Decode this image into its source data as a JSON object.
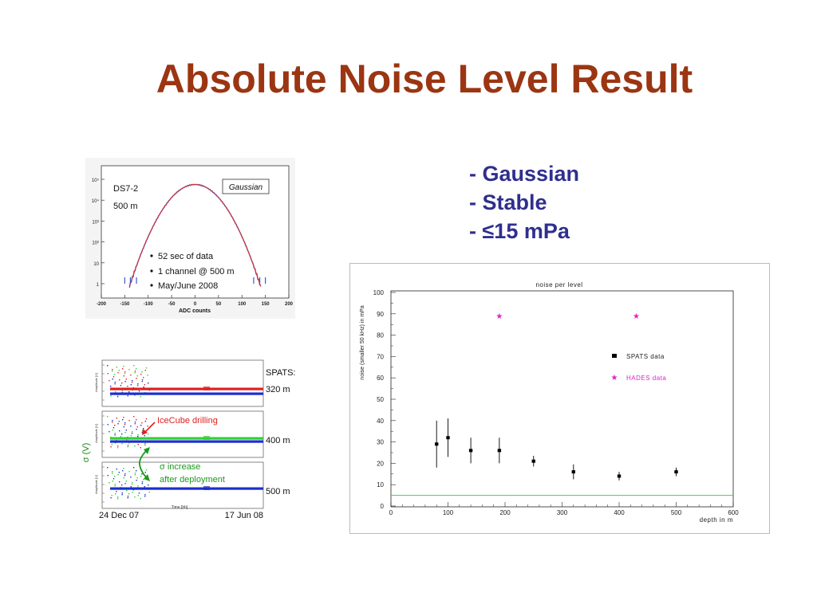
{
  "slide": {
    "title": "Absolute Noise Level Result",
    "bullets": [
      "- Gaussian",
      "- Stable",
      "- ≤15 mPa"
    ]
  },
  "chart_data": [
    {
      "type": "line",
      "y_scale": "log",
      "xlim": [
        -200,
        200
      ],
      "xticks": [
        "-200",
        "-150",
        "-100",
        "-50",
        "0",
        "50",
        "100",
        "150",
        "200"
      ],
      "yticks": [
        "1",
        "10",
        "10²",
        "10³",
        "10⁴",
        "10⁵"
      ],
      "xlabel": "ADC counts",
      "ylabel": "",
      "legend": "Gaussian",
      "annotations": [
        "DS7-2",
        "500 m"
      ],
      "bullets": [
        "52 sec of data",
        "1 channel @ 500 m",
        "May/June 2008"
      ],
      "series": [
        {
          "name": "Gaussian",
          "color": "#d93030"
        },
        {
          "name": "data",
          "color": "#3a5bd0"
        }
      ],
      "colors": {
        "fit": "#d93030",
        "data": "#3a5bd0"
      }
    },
    {
      "type": "scatter",
      "ylabel": "σ (V)",
      "xlabel": "Time [hh]",
      "panel_ylabel": "Amplitude [V]",
      "x_range_labels": [
        "24 Dec 07",
        "17 Jun 08"
      ],
      "header": "SPATS:",
      "depth_labels": [
        "320 m",
        "400 m",
        "500 m"
      ],
      "annotations": {
        "drilling": "IceCube drilling",
        "increase_line1": "σ increase",
        "increase_line2": "after deployment"
      },
      "colors": {
        "red": "#e02020",
        "green": "#30d030",
        "blue": "#1a2fd0",
        "drilling": "#e02020",
        "increase": "#1a9a1a"
      }
    },
    {
      "type": "scatter",
      "title": "noise per level",
      "xlabel": "depth in m",
      "ylabel": "noise (smaller 50 kHz) in mPa",
      "xlim": [
        0,
        600
      ],
      "ylim": [
        0,
        100
      ],
      "xticks": [
        0,
        100,
        200,
        300,
        400,
        500,
        600
      ],
      "yticks": [
        0,
        10,
        20,
        30,
        40,
        50,
        60,
        70,
        80,
        90,
        100
      ],
      "series": [
        {
          "name": "SPATS data",
          "color": "#000000",
          "marker": "square",
          "x": [
            80,
            100,
            140,
            190,
            250,
            320,
            400,
            500
          ],
          "y": [
            29,
            32,
            26,
            26,
            21,
            16,
            14,
            16
          ],
          "yerr": [
            11,
            9,
            6,
            6,
            2.5,
            3.5,
            2,
            2
          ]
        },
        {
          "name": "HADES data",
          "color": "#e020d0",
          "marker": "star",
          "x": [
            190,
            430
          ],
          "y": [
            89,
            89
          ]
        }
      ],
      "hline": {
        "y": 5,
        "color": "#50c850"
      }
    }
  ]
}
